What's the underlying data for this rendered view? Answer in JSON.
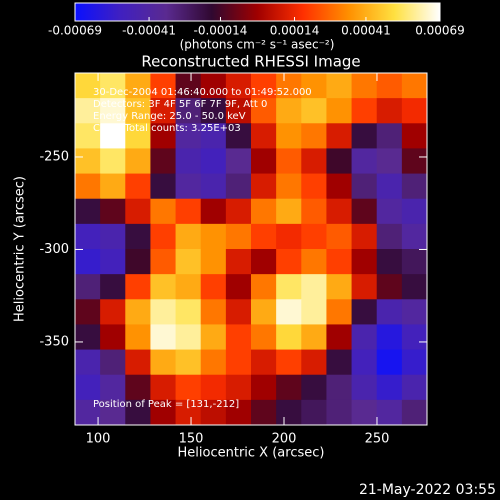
{
  "chart_data": {
    "type": "heatmap",
    "title": "Reconstructed RHESSI Image",
    "x_label": "Heliocentric X (arcsec)",
    "y_label": "Heliocentric Y (arcsec)",
    "xlim": [
      87.6,
      276.9
    ],
    "xticks": [
      100,
      150,
      200,
      250
    ],
    "ylim": [
      -394.9,
      -204.6
    ],
    "yticks": [
      -250,
      -300,
      -350
    ],
    "annotations": [
      "30-Dec-2004 01:46:40.000 to 01:49:52.000",
      "Detectors: 3F 4F 5F 6F 7F 9F, Att 0",
      "Energy Range: 25.0 - 50.0 keV",
      "Clean   Total counts: 3.25E+03"
    ],
    "peak_label": "Position of Peak = [131,-212]",
    "colorbar": {
      "clim": [
        -0.00069,
        0.00069
      ],
      "ticks": [
        -0.00069,
        -0.00041,
        -0.00014,
        0.00014,
        0.00041,
        0.00069
      ],
      "units": "(photons cm⁻² s⁻¹ asec⁻²)"
    },
    "colorscale": [
      "#0a10ff",
      "#4020c0",
      "#5a2a90",
      "#300830",
      "#a00000",
      "#ff3000",
      "#ff9000",
      "#ffe040",
      "#ffffff"
    ],
    "z": [
      [
        0.0005,
        0.00055,
        0.0004,
        0.0002,
        -0.0001,
        0,
        0.0001,
        0.0002,
        0.0003,
        0.00035,
        0.0004,
        0.0003,
        0.00025,
        0.0003
      ],
      [
        0.0006,
        0.00065,
        0.00045,
        0.0001,
        -0.0003,
        -0.0002,
        5e-05,
        0.00025,
        0.0004,
        0.00045,
        0.00035,
        0.0002,
        0.0001,
        0.00015
      ],
      [
        0.00055,
        0.00069,
        0.0005,
        0,
        -0.0004,
        -0.00045,
        -0.0002,
        0.0001,
        0.00035,
        0.0003,
        0.0001,
        -0.0002,
        -0.0003,
        0
      ],
      [
        0.00045,
        0.00055,
        0.0004,
        -0.0001,
        -0.00045,
        -0.0005,
        -0.00035,
        0,
        0.00025,
        0.0001,
        -0.00015,
        -0.0004,
        -0.00035,
        -0.0001
      ],
      [
        0.0003,
        0.0004,
        0.0002,
        -0.0002,
        -0.0004,
        -0.00045,
        -0.0003,
        0.0001,
        0.0003,
        0.0002,
        0,
        -0.0003,
        -0.00045,
        -0.0003
      ],
      [
        -0.0002,
        -0.0001,
        0.0001,
        0.0003,
        0.0002,
        0,
        0.0001,
        0.0003,
        0.0004,
        0.00025,
        0.0001,
        -0.0001,
        -0.0004,
        -0.00045
      ],
      [
        -0.0005,
        -0.00045,
        -0.0002,
        0.0002,
        0.0004,
        0.00035,
        0.0003,
        0.0002,
        0.00015,
        0.0002,
        0.00025,
        0.0001,
        -0.0003,
        -0.0004
      ],
      [
        -0.00055,
        -0.0005,
        -0.00015,
        0.00025,
        0.00045,
        0.00035,
        0.0001,
        0,
        0.0002,
        0.0003,
        0.0002,
        0,
        -0.0002,
        -0.00025
      ],
      [
        -0.0003,
        -0.0002,
        0.0002,
        0.00045,
        0.0004,
        0.0002,
        0,
        0.0003,
        0.00055,
        0.0006,
        0.0004,
        0.0001,
        -0.0001,
        -0.0002
      ],
      [
        -0.0001,
        0.0001,
        0.0004,
        0.0006,
        0.00055,
        0.0003,
        0.0001,
        0.0004,
        0.00065,
        0.0006,
        0.0003,
        -0.0002,
        -0.00045,
        -0.0004
      ],
      [
        -0.0002,
        0,
        0.00035,
        0.00065,
        0.0006,
        0.0004,
        0.0002,
        0.0003,
        0.0005,
        0.0004,
        0,
        -0.00045,
        -0.0006,
        -0.0005
      ],
      [
        -0.00045,
        -0.0003,
        0.0001,
        0.0004,
        0.00045,
        0.0003,
        0.0002,
        0.0001,
        0.0002,
        0.0001,
        -0.0002,
        -0.0005,
        -0.00065,
        -0.00055
      ],
      [
        -0.0005,
        -0.0004,
        -0.0001,
        0.0001,
        0.0002,
        0.00015,
        0.0001,
        0,
        -0.0001,
        -0.0002,
        -0.0003,
        -0.00045,
        -0.00055,
        -0.00045
      ],
      [
        -0.0004,
        -0.00035,
        -0.0002,
        0,
        0.0001,
        5e-05,
        0,
        -0.0001,
        -0.0002,
        -0.00025,
        -0.0003,
        -0.00035,
        -0.0004,
        -0.0003
      ]
    ],
    "timestamp": "21-May-2022 03:55"
  }
}
